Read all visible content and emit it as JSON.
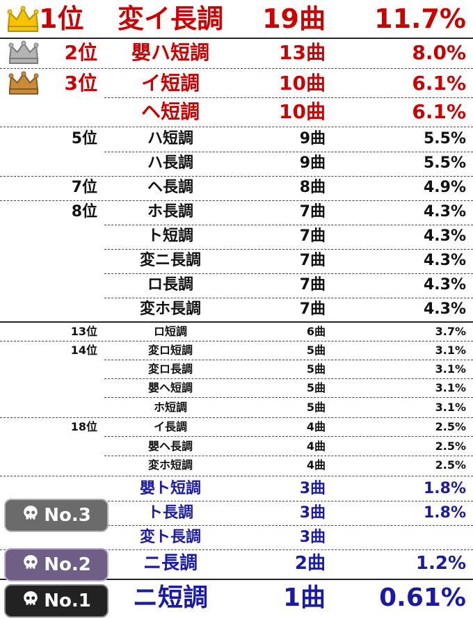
{
  "rows": [
    {
      "rank": "1位",
      "key": "変イ長調",
      "count": "19曲",
      "pct": "11.7%"
    },
    {
      "rank": "2位",
      "key": "嬰ハ短調",
      "count": "13曲",
      "pct": "8.0%"
    },
    {
      "rank": "3位",
      "key": "イ短調",
      "count": "10曲",
      "pct": "6.1%"
    },
    {
      "rank": "",
      "key": "ヘ短調",
      "count": "10曲",
      "pct": "6.1%"
    },
    {
      "rank": "5位",
      "key": "ハ短調",
      "count": "9曲",
      "pct": "5.5%"
    },
    {
      "rank": "",
      "key": "ハ長調",
      "count": "9曲",
      "pct": "5.5%"
    },
    {
      "rank": "7位",
      "key": "ヘ長調",
      "count": "8曲",
      "pct": "4.9%"
    },
    {
      "rank": "8位",
      "key": "ホ長調",
      "count": "7曲",
      "pct": "4.3%"
    },
    {
      "rank": "",
      "key": "ト短調",
      "count": "7曲",
      "pct": "4.3%"
    },
    {
      "rank": "",
      "key": "変ニ長調",
      "count": "7曲",
      "pct": "4.3%"
    },
    {
      "rank": "",
      "key": "ロ長調",
      "count": "7曲",
      "pct": "4.3%"
    },
    {
      "rank": "",
      "key": "変ホ長調",
      "count": "7曲",
      "pct": "4.3%"
    },
    {
      "rank": "13位",
      "key": "ロ短調",
      "count": "6曲",
      "pct": "3.7%"
    },
    {
      "rank": "14位",
      "key": "変ロ短調",
      "count": "5曲",
      "pct": "3.1%"
    },
    {
      "rank": "",
      "key": "変ロ長調",
      "count": "5曲",
      "pct": "3.1%"
    },
    {
      "rank": "",
      "key": "嬰ヘ短調",
      "count": "5曲",
      "pct": "3.1%"
    },
    {
      "rank": "",
      "key": "ホ短調",
      "count": "5曲",
      "pct": "3.1%"
    },
    {
      "rank": "18位",
      "key": "イ長調",
      "count": "4曲",
      "pct": "2.5%"
    },
    {
      "rank": "",
      "key": "嬰ヘ長調",
      "count": "4曲",
      "pct": "2.5%"
    },
    {
      "rank": "",
      "key": "変ホ短調",
      "count": "4曲",
      "pct": "2.5%"
    },
    {
      "rank": "",
      "key": "嬰ト短調",
      "count": "3曲",
      "pct": "1.8%"
    },
    {
      "rank": "",
      "key": "ト長調",
      "count": "3曲",
      "pct": "1.8%"
    },
    {
      "rank": "",
      "key": "変ト長調",
      "count": "3曲",
      "pct": ""
    },
    {
      "rank": "",
      "key": "ニ長調",
      "count": "2曲",
      "pct": "1.2%"
    },
    {
      "rank": "",
      "key": "ニ短調",
      "count": "1曲",
      "pct": "0.61%"
    }
  ],
  "badges": {
    "no3": "No.3",
    "no2": "No.2",
    "no1": "No.1"
  },
  "icons": {
    "gold": "crown-gold-icon",
    "silver": "crown-silver-icon",
    "bronze": "crown-bronze-icon",
    "skull": "skull-icon"
  },
  "colors": {
    "top": "#cc0000",
    "middle": "#111111",
    "bottom": "#1a1aa8",
    "gold": "#f5c400",
    "silver": "#b3b3b3",
    "bronze": "#c98a3a",
    "badge3": "#6b6b6b",
    "badge2": "#6f5f86",
    "badge1": "#222222"
  }
}
